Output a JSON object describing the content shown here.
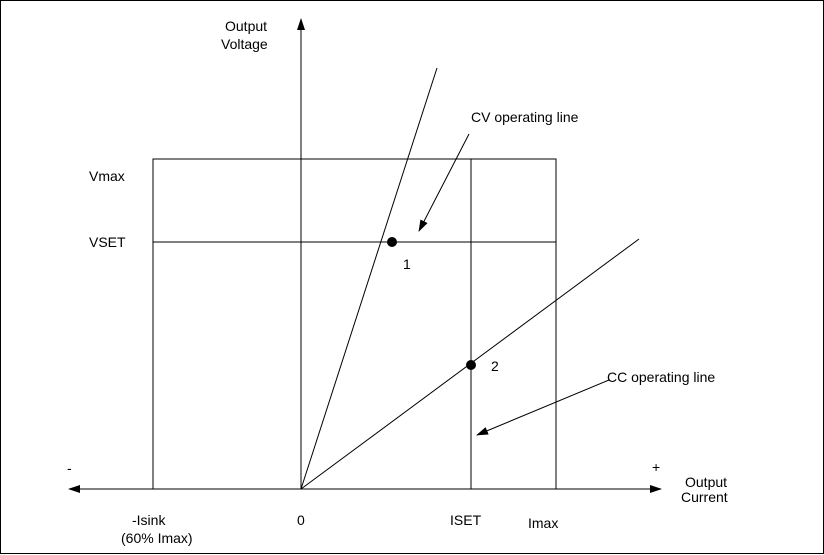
{
  "axes": {
    "y_label_line1": "Output",
    "y_label_line2": "Voltage",
    "x_label_line1": "Output",
    "x_label_line2": "Current",
    "minus_sign": "-",
    "plus_sign": "+"
  },
  "levels": {
    "vmax": "Vmax",
    "vset": "VSET"
  },
  "ticks": {
    "isink": "-Isink",
    "isink_note": "(60% Imax)",
    "zero": "0",
    "iset": "ISET",
    "imax": "Imax"
  },
  "points": {
    "p1": "1",
    "p2": "2"
  },
  "callouts": {
    "cv_line": "CV operating line",
    "cc_line": "CC operating line"
  },
  "colors": {
    "line": "#000000",
    "background": "#ffffff"
  }
}
